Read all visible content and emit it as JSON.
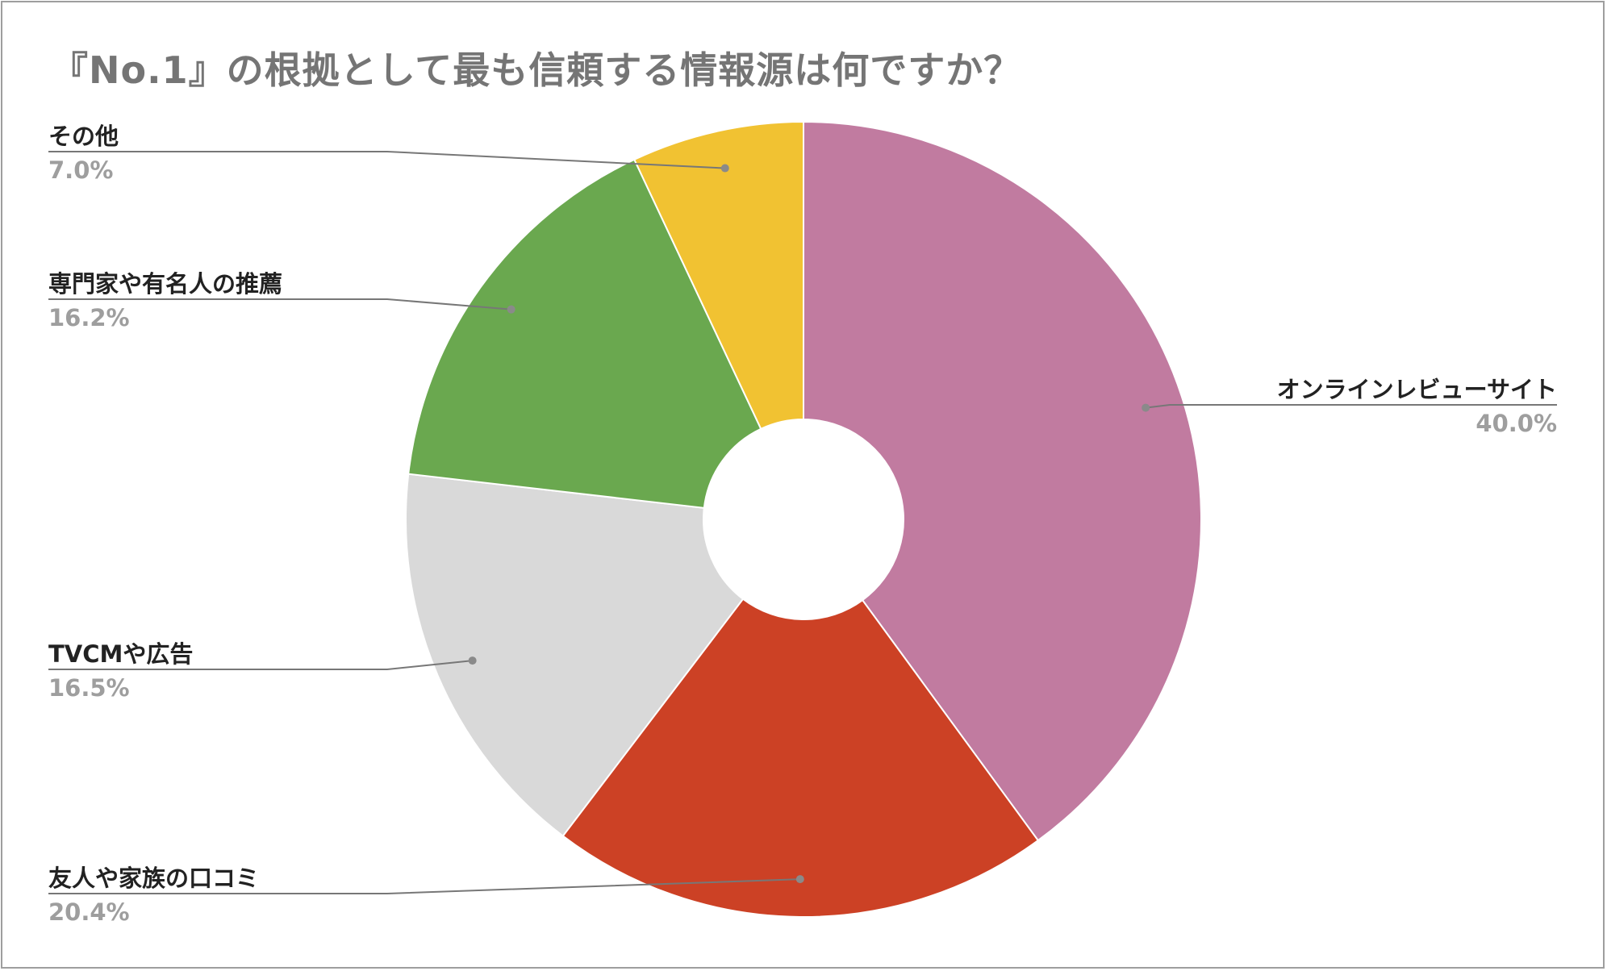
{
  "chart_data": {
    "type": "pie",
    "title": "『No.1』の根拠として最も信頼する情報源は何ですか？",
    "donut": true,
    "start": "top, clockwise",
    "legend": "labels beside slices with leader lines",
    "slices": [
      {
        "label": "オンラインレビューサイト",
        "value": 40.0,
        "value_label": "40.0%",
        "color": "#c17ba0",
        "side": "right"
      },
      {
        "label": "友人や家族の口コミ",
        "value": 20.4,
        "value_label": "20.4%",
        "color": "#cc4125",
        "side": "left"
      },
      {
        "label": "TVCMや広告",
        "value": 16.5,
        "value_label": "16.5%",
        "color": "#d9d9d9",
        "side": "left"
      },
      {
        "label": "専門家や有名人の推薦",
        "value": 16.2,
        "value_label": "16.2%",
        "color": "#6aa84f",
        "side": "left"
      },
      {
        "label": "その他",
        "value": 7.0,
        "value_label": "7.0%",
        "color": "#f1c232",
        "side": "left"
      }
    ]
  }
}
